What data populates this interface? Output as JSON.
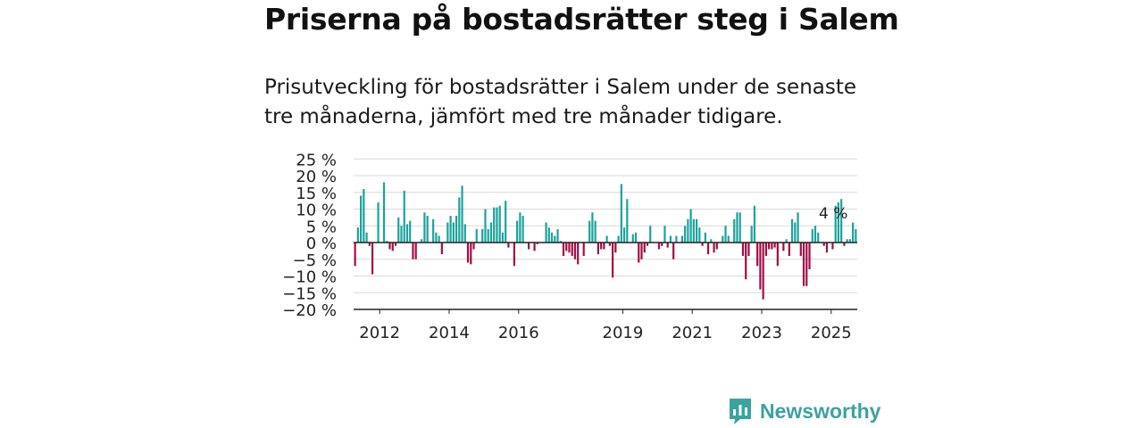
{
  "title": "Priserna på bostadsrätter steg i Salem",
  "subtitle": "Prisutveckling för bostadsrätter i Salem under de senaste tre månaderna, jämfört med tre månader tidigare.",
  "brand": {
    "name": "Newsworthy",
    "color": "#3aa3a0"
  },
  "colors": {
    "positive": "#1ba39c",
    "negative": "#a30d45",
    "grid": "#d9d9d9",
    "axis": "#222222"
  },
  "chart_data": {
    "type": "bar",
    "title": "Priserna på bostadsrätter steg i Salem",
    "xlabel": "",
    "ylabel": "",
    "ylim": [
      -20,
      25
    ],
    "y_ticks": [
      {
        "value": 25,
        "label": "25 %"
      },
      {
        "value": 20,
        "label": "20 %"
      },
      {
        "value": 15,
        "label": "15 %"
      },
      {
        "value": 10,
        "label": "10 %"
      },
      {
        "value": 5,
        "label": "5 %"
      },
      {
        "value": 0,
        "label": "0 %"
      },
      {
        "value": -5,
        "label": "−5 %"
      },
      {
        "value": -10,
        "label": "−10 %"
      },
      {
        "value": -15,
        "label": "−15 %"
      },
      {
        "value": -20,
        "label": "−20 %"
      }
    ],
    "x_ticks": [
      {
        "label": "2012",
        "year": 2012
      },
      {
        "label": "2014",
        "year": 2014
      },
      {
        "label": "2016",
        "year": 2016
      },
      {
        "label": "2019",
        "year": 2019
      },
      {
        "label": "2021",
        "year": 2021
      },
      {
        "label": "2023",
        "year": 2023
      },
      {
        "label": "2025",
        "year": 2025
      }
    ],
    "x_start": "2011-04",
    "x_end": "2025-09",
    "values": [
      -7,
      4.5,
      14,
      16,
      3,
      -1,
      -9.5,
      0,
      12,
      18,
      0.5,
      -2,
      -2.5,
      -1,
      7.5,
      5,
      15.5,
      5.5,
      6.5,
      -5,
      -5,
      0,
      1,
      9,
      8,
      7,
      3,
      2,
      -3.5,
      0,
      6,
      8,
      6,
      8,
      13.5,
      17,
      5.5,
      -6,
      -6.5,
      -2,
      4,
      4,
      10,
      4,
      6,
      10.5,
      10.5,
      11,
      3,
      12.5,
      -1.5,
      0,
      -7,
      6.5,
      9,
      8,
      0,
      -2,
      -2.5,
      -0.5,
      0,
      0,
      6,
      4.5,
      3,
      2,
      4,
      0.5,
      -4,
      -2.5,
      -3,
      -4,
      -5,
      -6.5,
      -4,
      0,
      6.5,
      9,
      6.5,
      -3.5,
      -2,
      -2,
      2,
      -1,
      -10.5,
      -3,
      2,
      17.5,
      4.5,
      13,
      2.5,
      3,
      -6,
      -5,
      -3,
      -1,
      5,
      0,
      0,
      -2,
      -1,
      5,
      -1.5,
      2,
      -5,
      2,
      2,
      5,
      7,
      10,
      7,
      7,
      4.5,
      -1,
      3,
      -3.5,
      1,
      -3,
      -2,
      0,
      2,
      5,
      2,
      7,
      9,
      9,
      -4,
      -11,
      -4,
      5,
      11,
      -7,
      -14,
      -17,
      -4,
      -2,
      -2,
      -1.5,
      -7,
      -2.5,
      1,
      -4,
      7,
      6,
      9,
      -4,
      -13,
      -13,
      -8,
      4,
      5,
      3,
      0,
      -1,
      -3,
      -2,
      11,
      12,
      13,
      -1,
      1,
      1,
      6,
      4
    ]
  },
  "callout": "4 %"
}
